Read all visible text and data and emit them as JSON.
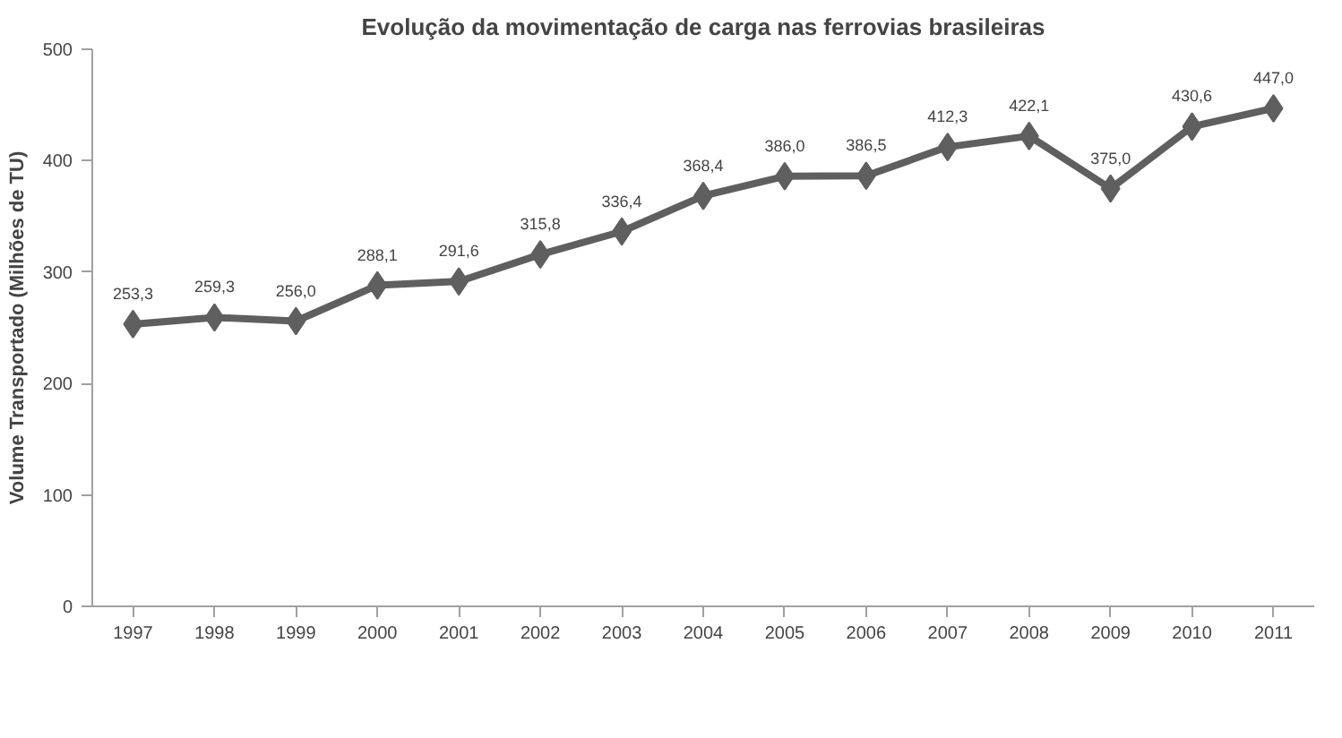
{
  "chart_data": {
    "type": "line",
    "title": "Evolução da movimentação de carga nas ferrovias brasileiras",
    "ylabel": "Volume Transportado (Milhões de TU)",
    "categories": [
      "1997",
      "1998",
      "1999",
      "2000",
      "2001",
      "2002",
      "2003",
      "2004",
      "2005",
      "2006",
      "2007",
      "2008",
      "2009",
      "2010",
      "2011"
    ],
    "series": [
      {
        "color": "#5f5f5f",
        "values": [
          253.3,
          259.3,
          256.0,
          288.1,
          291.6,
          315.8,
          336.4,
          368.4,
          386.0,
          386.5,
          412.3,
          422.1,
          375.0,
          430.6,
          447.0
        ],
        "value_labels": [
          "253,3",
          "259,3",
          "256,0",
          "288,1",
          "291,6",
          "315,8",
          "336,4",
          "368,4",
          "386,0",
          "386,5",
          "412,3",
          "422,1",
          "375,0",
          "430,6",
          "447,0"
        ]
      }
    ],
    "ylim": [
      0,
      500
    ],
    "yticks": [
      0,
      100,
      200,
      300,
      400,
      500
    ],
    "marker": "diamond",
    "line_style": "solid"
  }
}
